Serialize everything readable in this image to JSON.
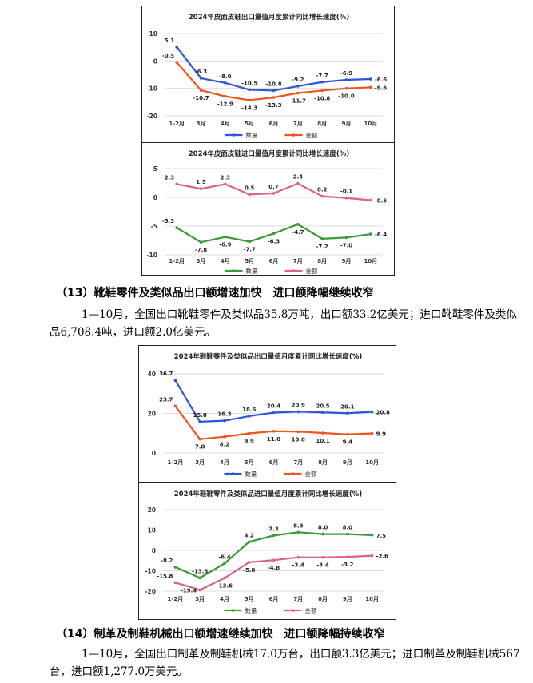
{
  "chart_data": [
    {
      "type": "line",
      "title": "2024年皮面皮鞋出口量值月度累计同比增长速度(%)",
      "categories": [
        "1-2月",
        "3月",
        "4月",
        "5月",
        "6月",
        "7月",
        "8月",
        "9月",
        "10月"
      ],
      "ylim": [
        -20,
        10
      ],
      "yticks": [
        10,
        0,
        -10,
        -20
      ],
      "grid": true,
      "legend": "bottom",
      "series": [
        {
          "name": "数量",
          "color": "#2f55d4",
          "values": [
            5.1,
            -6.3,
            -8.0,
            -10.5,
            -10.8,
            -9.2,
            -7.7,
            -6.9,
            -6.6
          ]
        },
        {
          "name": "金额",
          "color": "#f0531c",
          "values": [
            -0.5,
            -10.7,
            -12.9,
            -14.3,
            -13.3,
            -11.7,
            -10.8,
            -10.0,
            -9.6
          ]
        }
      ]
    },
    {
      "type": "line",
      "title": "2024年皮面皮鞋进口量值月度累计同比增长速度(%)",
      "categories": [
        "1-2月",
        "3月",
        "4月",
        "5月",
        "6月",
        "7月",
        "8月",
        "9月",
        "10月"
      ],
      "ylim": [
        -10,
        5
      ],
      "yticks": [
        5,
        0,
        -5,
        -10
      ],
      "grid": true,
      "legend": "bottom",
      "series": [
        {
          "name": "数量",
          "color": "#3a9a3a",
          "values": [
            -5.3,
            -7.8,
            -6.9,
            -7.7,
            -6.3,
            -4.7,
            -7.2,
            -7.0,
            -6.4
          ]
        },
        {
          "name": "金额",
          "color": "#d9638a",
          "values": [
            2.3,
            1.5,
            2.3,
            0.5,
            0.7,
            2.4,
            0.2,
            -0.1,
            -0.5
          ]
        }
      ]
    },
    {
      "type": "line",
      "title": "2024年鞋靴零件及类似品出口量值月度累计同比增长速度(%)",
      "categories": [
        "1-2月",
        "3月",
        "4月",
        "5月",
        "6月",
        "7月",
        "8月",
        "9月",
        "10月"
      ],
      "ylim": [
        0,
        40
      ],
      "yticks": [
        40,
        20,
        0
      ],
      "grid": true,
      "legend": "bottom",
      "series": [
        {
          "name": "数量",
          "color": "#2f55d4",
          "values": [
            36.7,
            15.8,
            16.3,
            18.6,
            20.4,
            20.9,
            20.5,
            20.1,
            20.8
          ]
        },
        {
          "name": "金额",
          "color": "#f0531c",
          "values": [
            23.7,
            7.0,
            8.2,
            9.9,
            11.0,
            10.8,
            10.1,
            9.4,
            9.9
          ]
        }
      ]
    },
    {
      "type": "line",
      "title": "2024年鞋靴零件及类似品进口量值月度累计同比增长速度(%)",
      "categories": [
        "1-2月",
        "3月",
        "4月",
        "5月",
        "6月",
        "7月",
        "8月",
        "9月",
        "10月"
      ],
      "ylim": [
        -20,
        20
      ],
      "yticks": [
        20,
        10,
        0,
        -10,
        -20
      ],
      "grid": true,
      "legend": "bottom",
      "series": [
        {
          "name": "数量",
          "color": "#3a9a3a",
          "values": [
            -8.2,
            -13.5,
            -6.4,
            4.2,
            7.3,
            8.9,
            8.0,
            8.0,
            7.5
          ]
        },
        {
          "name": "金额",
          "color": "#d9638a",
          "values": [
            -15.8,
            -19.4,
            -13.6,
            -5.8,
            -4.8,
            -3.4,
            -3.4,
            -3.2,
            -2.6
          ]
        }
      ]
    }
  ],
  "section13": {
    "heading": "（13）靴鞋零件及类似品出口额增速加快　进口额降幅继续收窄",
    "body": "1—10月，全国出口靴鞋零件及类似品35.8万吨，出口额33.2亿美元；进口靴鞋零件及类似品6,708.4吨，进口额2.0亿美元。"
  },
  "section14": {
    "heading": "（14）制革及制鞋机械出口额增速继续加快　进口额降幅持续收窄",
    "body": "1—10月，全国出口制革及制鞋机械17.0万台，出口额3.3亿美元；进口制革及制鞋机械567台，进口额1,277.0万美元。"
  }
}
